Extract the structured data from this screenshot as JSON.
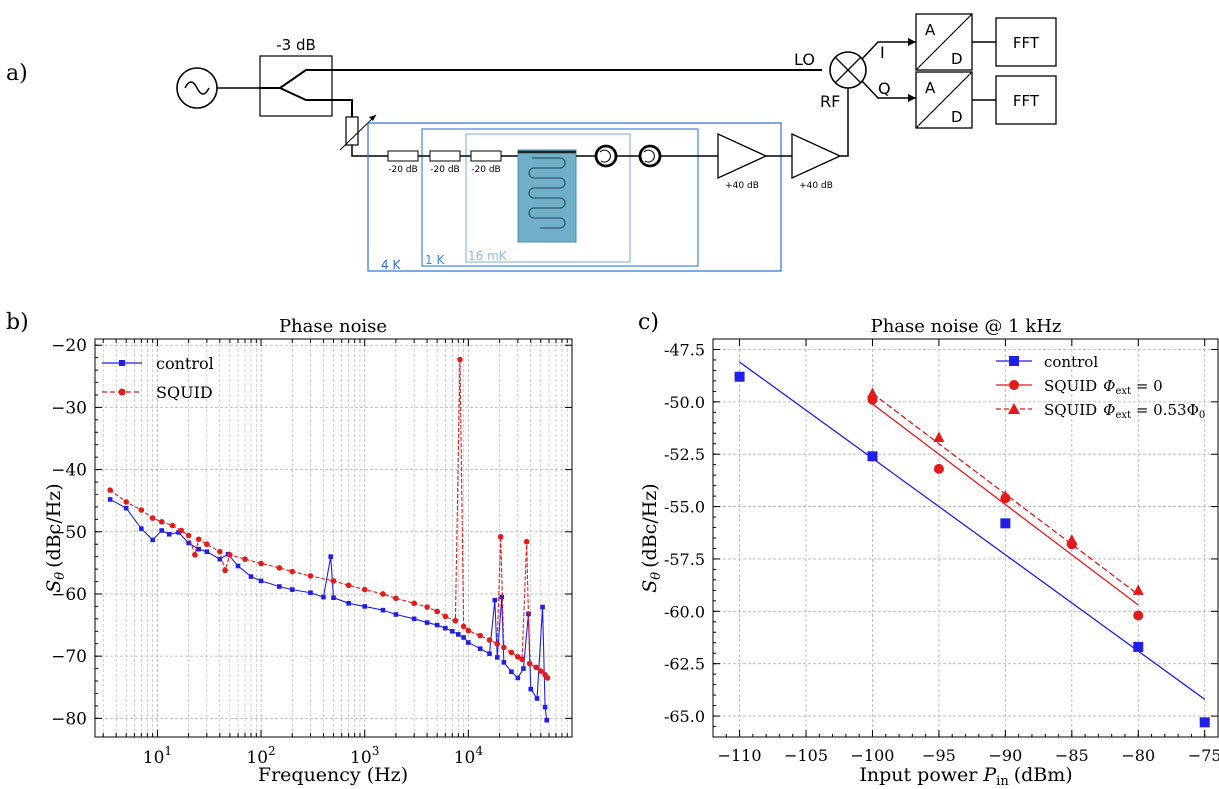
{
  "panel_labels": {
    "a": "a)",
    "b": "b)",
    "c": "c)"
  },
  "diagram": {
    "splitter_label": "-3 dB",
    "mixer_labels": {
      "lo": "LO",
      "rf": "RF",
      "i": "I",
      "q": "Q"
    },
    "adc_top": "A",
    "adc_bottom": "D",
    "fft_label": "FFT",
    "attenuators": [
      "-20 dB",
      "-20 dB",
      "-20 dB"
    ],
    "amplifiers": [
      "+40 dB",
      "+40 dB"
    ],
    "stages": [
      "4 K",
      "1 K",
      "16 mK"
    ],
    "colors": {
      "stage_4k": "#2a6fd6",
      "stage_1k": "#3f86df",
      "stage_16mk": "#8fb8ea",
      "chip": "#6fb0c8"
    }
  },
  "chart_data": [
    {
      "type": "line",
      "title": "Phase noise",
      "xlabel": "Frequency (Hz)",
      "ylabel_symbol": "S",
      "ylabel_subscript": "θ",
      "ylabel_unit": "(dBc/Hz)",
      "x_scale": "log",
      "xlim": [
        2.5,
        100000
      ],
      "ylim": [
        -83,
        -19
      ],
      "x_ticks": [
        {
          "value": 10,
          "base": "10",
          "exp": "1"
        },
        {
          "value": 100,
          "base": "10",
          "exp": "2"
        },
        {
          "value": 1000,
          "base": "10",
          "exp": "3"
        },
        {
          "value": 10000,
          "base": "10",
          "exp": "4"
        }
      ],
      "y_ticks": [
        "−20",
        "−30",
        "−40",
        "−50",
        "−60",
        "−70",
        "−80"
      ],
      "y_tick_values": [
        -20,
        -30,
        -40,
        -50,
        -60,
        -70,
        -80
      ],
      "grid": true,
      "legend": "top-left",
      "series": [
        {
          "name": "control",
          "color": "#1f1fe8",
          "marker": "square",
          "dash": "solid",
          "points": [
            [
              3.5,
              -44.8
            ],
            [
              5,
              -46.2
            ],
            [
              7,
              -49.5
            ],
            [
              9,
              -51.3
            ],
            [
              11,
              -49.8
            ],
            [
              13,
              -50.4
            ],
            [
              16,
              -50.1
            ],
            [
              20,
              -51.8
            ],
            [
              25,
              -52.8
            ],
            [
              30,
              -53.2
            ],
            [
              40,
              -54.4
            ],
            [
              48,
              -53.6
            ],
            [
              60,
              -55.5
            ],
            [
              80,
              -57.2
            ],
            [
              100,
              -57.9
            ],
            [
              150,
              -58.8
            ],
            [
              200,
              -59.3
            ],
            [
              300,
              -59.8
            ],
            [
              400,
              -60.5
            ],
            [
              470,
              -54.0
            ],
            [
              500,
              -60.6
            ],
            [
              700,
              -61.5
            ],
            [
              1000,
              -62.0
            ],
            [
              1500,
              -62.6
            ],
            [
              2000,
              -63.3
            ],
            [
              3000,
              -64.0
            ],
            [
              4000,
              -64.6
            ],
            [
              5000,
              -65.0
            ],
            [
              6000,
              -65.5
            ],
            [
              7000,
              -66.0
            ],
            [
              8000,
              -66.5
            ],
            [
              9000,
              -67.0
            ],
            [
              10000,
              -67.8
            ],
            [
              13000,
              -68.8
            ],
            [
              16000,
              -69.6
            ],
            [
              18000,
              -61.0
            ],
            [
              19000,
              -70.2
            ],
            [
              21000,
              -60.5
            ],
            [
              22000,
              -71.0
            ],
            [
              26000,
              -72.5
            ],
            [
              30000,
              -73.5
            ],
            [
              34000,
              -72.0
            ],
            [
              38000,
              -63.2
            ],
            [
              40000,
              -75.3
            ],
            [
              46000,
              -76.8
            ],
            [
              52000,
              -62.1
            ],
            [
              55000,
              -78.2
            ],
            [
              57000,
              -80.3
            ]
          ]
        },
        {
          "name": "SQUID",
          "color": "#e41a1a",
          "marker": "circle",
          "dash": "dashed",
          "points": [
            [
              3.5,
              -43.3
            ],
            [
              5,
              -45.2
            ],
            [
              7,
              -46.5
            ],
            [
              9,
              -47.8
            ],
            [
              11,
              -48.4
            ],
            [
              14,
              -49.0
            ],
            [
              17,
              -49.8
            ],
            [
              20,
              -50.6
            ],
            [
              23,
              -53.7
            ],
            [
              25,
              -51.2
            ],
            [
              30,
              -52.0
            ],
            [
              40,
              -53.2
            ],
            [
              45,
              -56.2
            ],
            [
              50,
              -53.7
            ],
            [
              70,
              -54.4
            ],
            [
              100,
              -55.1
            ],
            [
              150,
              -55.8
            ],
            [
              200,
              -56.4
            ],
            [
              300,
              -57.1
            ],
            [
              500,
              -57.9
            ],
            [
              700,
              -58.6
            ],
            [
              1000,
              -59.3
            ],
            [
              1500,
              -60.0
            ],
            [
              2000,
              -60.7
            ],
            [
              3000,
              -61.5
            ],
            [
              4000,
              -62.1
            ],
            [
              5000,
              -62.8
            ],
            [
              6000,
              -63.6
            ],
            [
              7500,
              -64.3
            ],
            [
              8300,
              -22.3
            ],
            [
              9000,
              -65.2
            ],
            [
              10000,
              -65.9
            ],
            [
              13000,
              -66.7
            ],
            [
              16000,
              -67.4
            ],
            [
              19000,
              -68.0
            ],
            [
              20500,
              -50.8
            ],
            [
              22000,
              -68.6
            ],
            [
              26000,
              -69.4
            ],
            [
              30000,
              -70.1
            ],
            [
              33000,
              -70.5
            ],
            [
              36500,
              -51.6
            ],
            [
              39000,
              -71.2
            ],
            [
              45000,
              -71.8
            ],
            [
              50000,
              -72.4
            ],
            [
              55000,
              -73.0
            ],
            [
              58000,
              -73.5
            ]
          ]
        }
      ]
    },
    {
      "type": "scatter",
      "title": "Phase noise @ 1 kHz",
      "xlabel_text": "Input power",
      "xlabel_symbol": "P",
      "xlabel_subscript": "in",
      "xlabel_unit": "(dBm)",
      "ylabel_symbol": "S",
      "ylabel_subscript": "θ",
      "ylabel_unit": "(dBc/Hz)",
      "xlim": [
        -112,
        -74
      ],
      "ylim": [
        -66,
        -47
      ],
      "x_ticks": [
        "−110",
        "−105",
        "−100",
        "−95",
        "−90",
        "−85",
        "−80",
        "−75"
      ],
      "x_tick_values": [
        -110,
        -105,
        -100,
        -95,
        -90,
        -85,
        -80,
        -75
      ],
      "y_ticks": [
        "-47.5",
        "-50.0",
        "-52.5",
        "-55.0",
        "-57.5",
        "-60.0",
        "-62.5",
        "-65.0"
      ],
      "y_tick_values": [
        -47.5,
        -50,
        -52.5,
        -55,
        -57.5,
        -60,
        -62.5,
        -65
      ],
      "grid": true,
      "legend": "top-right",
      "series": [
        {
          "name": "control",
          "color": "#1f1fe8",
          "marker": "square",
          "dash": "solid",
          "points": [
            [
              -110,
              -48.8
            ],
            [
              -100,
              -52.6
            ],
            [
              -90,
              -55.8
            ],
            [
              -80,
              -61.7
            ],
            [
              -75,
              -65.3
            ]
          ],
          "fit": [
            [
              -110,
              -48.1
            ],
            [
              -75,
              -64.2
            ]
          ]
        },
        {
          "name": "SQUID",
          "name_math": "Φ",
          "name_sub": "ext",
          "name_value": " = 0",
          "color": "#e41a1a",
          "marker": "circle",
          "dash": "solid",
          "points": [
            [
              -100,
              -49.9
            ],
            [
              -95,
              -53.2
            ],
            [
              -90,
              -54.6
            ],
            [
              -85,
              -56.8
            ],
            [
              -80,
              -60.2
            ]
          ],
          "fit": [
            [
              -100,
              -50.1
            ],
            [
              -80,
              -59.7
            ]
          ]
        },
        {
          "name": "SQUID",
          "name_math": "Φ",
          "name_sub": "ext",
          "name_value": " = 0.53Φ",
          "name_value_sub": "0",
          "color": "#e41a1a",
          "marker": "triangle",
          "dash": "dashed",
          "points": [
            [
              -100,
              -49.6
            ],
            [
              -95,
              -51.7
            ],
            [
              -90,
              -54.5
            ],
            [
              -85,
              -56.6
            ],
            [
              -80,
              -59.0
            ]
          ],
          "fit": [
            [
              -100,
              -49.6
            ],
            [
              -80,
              -59.2
            ]
          ]
        }
      ]
    }
  ]
}
